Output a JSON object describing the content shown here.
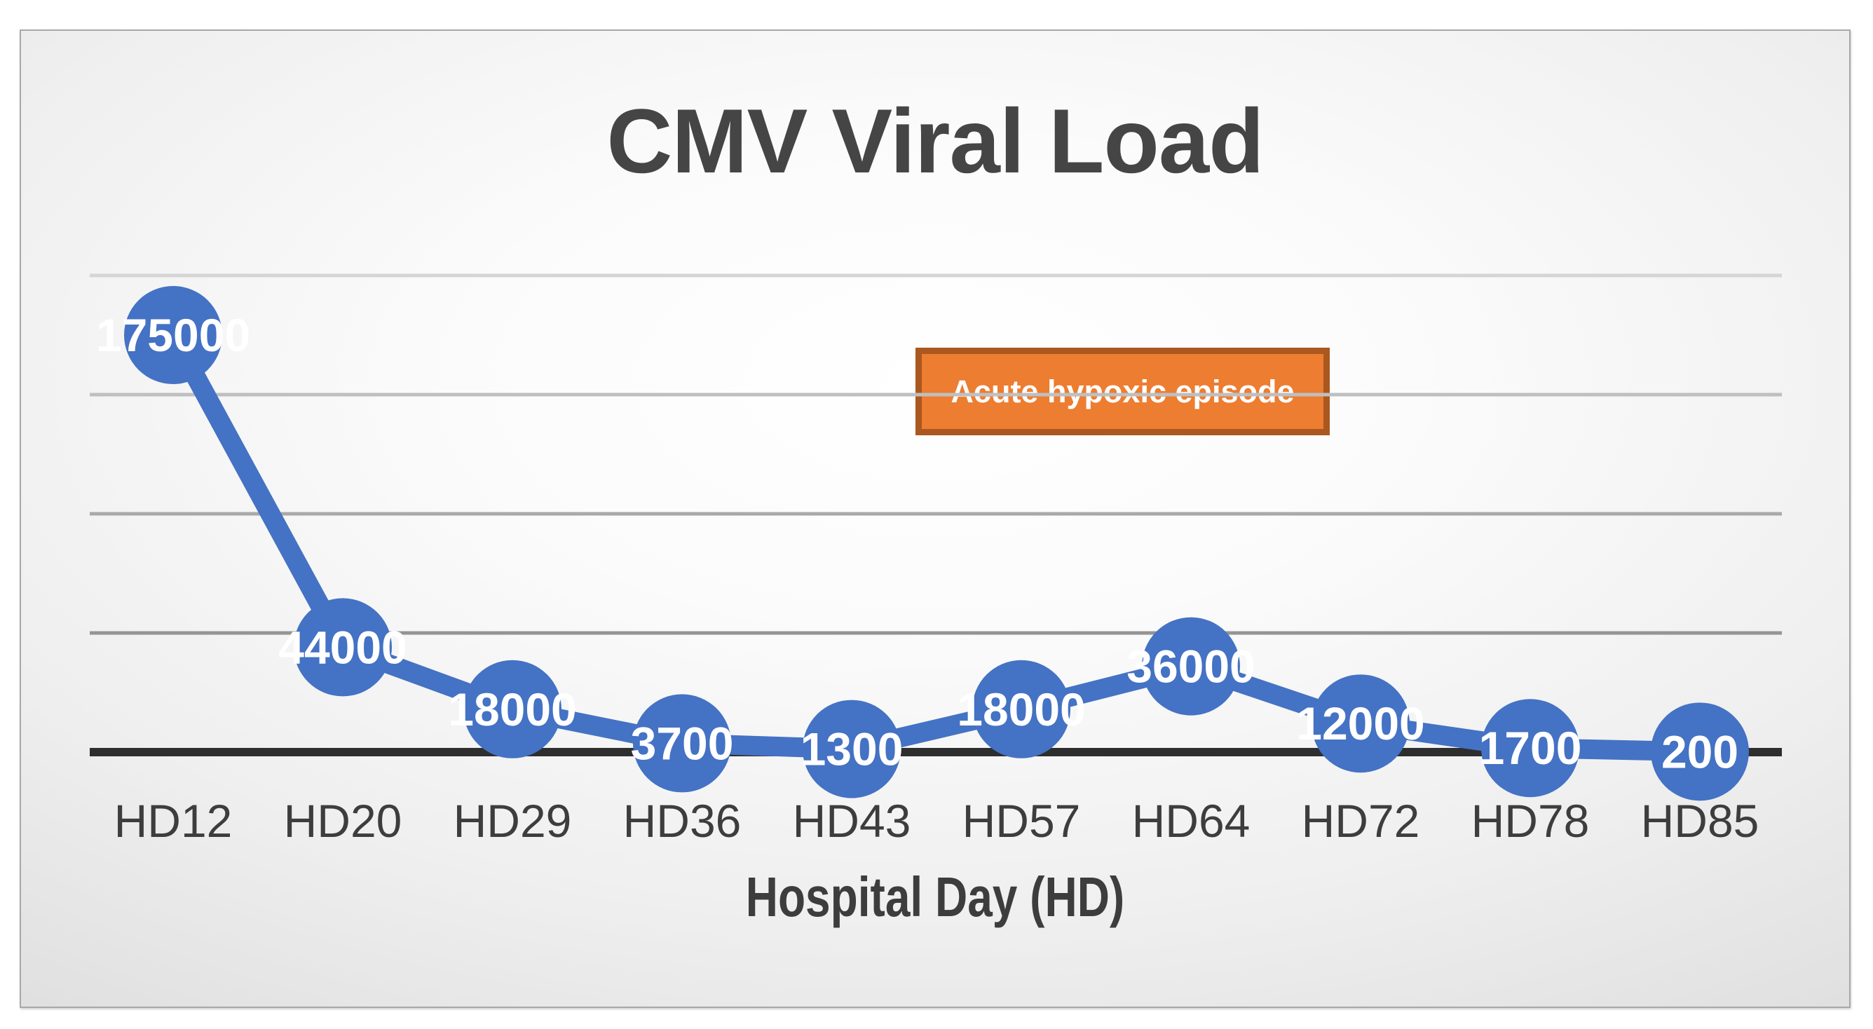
{
  "chart_data": {
    "type": "line",
    "title": "CMV Viral Load",
    "xlabel": "Hospital Day (HD)",
    "ylabel": "",
    "categories": [
      "HD12",
      "HD20",
      "HD29",
      "HD36",
      "HD43",
      "HD57",
      "HD64",
      "HD72",
      "HD78",
      "HD85"
    ],
    "values": [
      175000,
      44000,
      18000,
      3700,
      1300,
      18000,
      36000,
      12000,
      1700,
      200
    ],
    "ylim": [
      0,
      250000
    ],
    "gridline_values": [
      200000,
      150000,
      100000,
      50000
    ],
    "grid": "horizontal-only",
    "legend": "none",
    "marker": "circle",
    "data_labels": "on-point-white-bold",
    "annotation": "Acute hypoxic episode"
  },
  "annotation_box": {
    "label": "Acute hypoxic episode",
    "fill": "#ED7D31",
    "border_color": "#AA5820",
    "text_color": "#FFFFFF"
  },
  "colors": {
    "series": "#4472C4",
    "title_text": "#454545",
    "axis_line": "#2E2E2E",
    "tick_text": "#3D3D3D",
    "data_label_text": "#FFFFFF",
    "gridlines": [
      "#D5D5D5",
      "#BFBFBF",
      "#A9A9A9",
      "#949494"
    ]
  }
}
